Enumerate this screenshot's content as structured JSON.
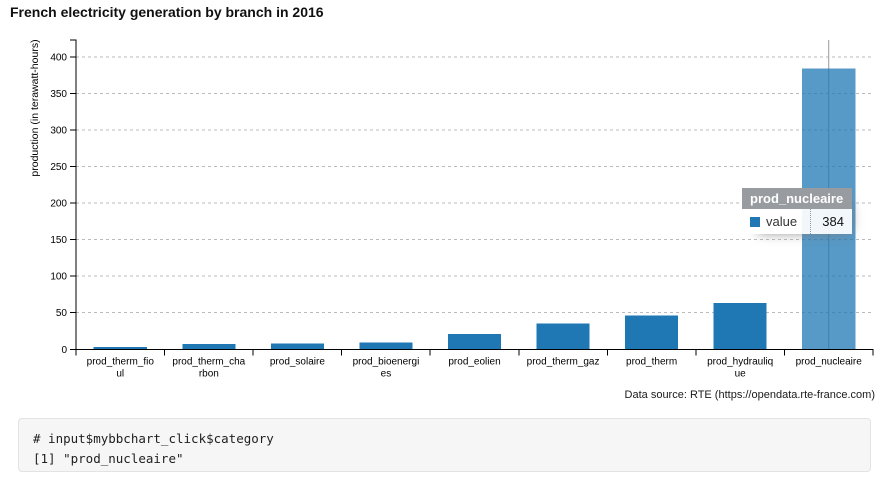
{
  "page": {
    "title": "French electricity generation by branch in 2016"
  },
  "chart_data": {
    "type": "bar",
    "title": "French electricity generation by branch in 2016",
    "xlabel": "",
    "ylabel": "production (in terawatt-hours)",
    "categories": [
      "prod_therm_fioul",
      "prod_therm_charbon",
      "prod_solaire",
      "prod_bioenergies",
      "prod_eolien",
      "prod_therm_gaz",
      "prod_therm",
      "prod_hydraulique",
      "prod_nucleaire"
    ],
    "category_label_lines": [
      [
        "prod_therm_fio",
        "ul"
      ],
      [
        "prod_therm_cha",
        "rbon"
      ],
      [
        "prod_solaire"
      ],
      [
        "prod_bioenergi",
        "es"
      ],
      [
        "prod_eolien"
      ],
      [
        "prod_therm_gaz"
      ],
      [
        "prod_therm"
      ],
      [
        "prod_hydrauliq",
        "ue"
      ],
      [
        "prod_nucleaire"
      ]
    ],
    "series": [
      {
        "name": "value",
        "values": [
          3,
          7,
          8,
          9,
          21,
          35,
          46,
          63,
          384
        ]
      }
    ],
    "ylim": [
      0,
      423
    ],
    "yticks": [
      0,
      50,
      100,
      150,
      200,
      250,
      300,
      350,
      400
    ],
    "grid": true,
    "legend_position": "none",
    "bar_color": "#1f77b4",
    "highlighted_category": "prod_nucleaire",
    "highlighted_index": 8,
    "highlight_fill_opacity": 0.75,
    "gridline_color": "#bbbbbb",
    "axis_color": "#000000",
    "focus_line_color": "#999999"
  },
  "tooltip": {
    "title": "prod_nucleaire",
    "series_label": "value",
    "value": "384",
    "marker_color": "#1f77b4"
  },
  "source_note": "Data source: RTE (https://opendata.rte-france.com)",
  "console": {
    "line1": "# input$mybbchart_click$category",
    "line2": "[1] \"prod_nucleaire\""
  }
}
